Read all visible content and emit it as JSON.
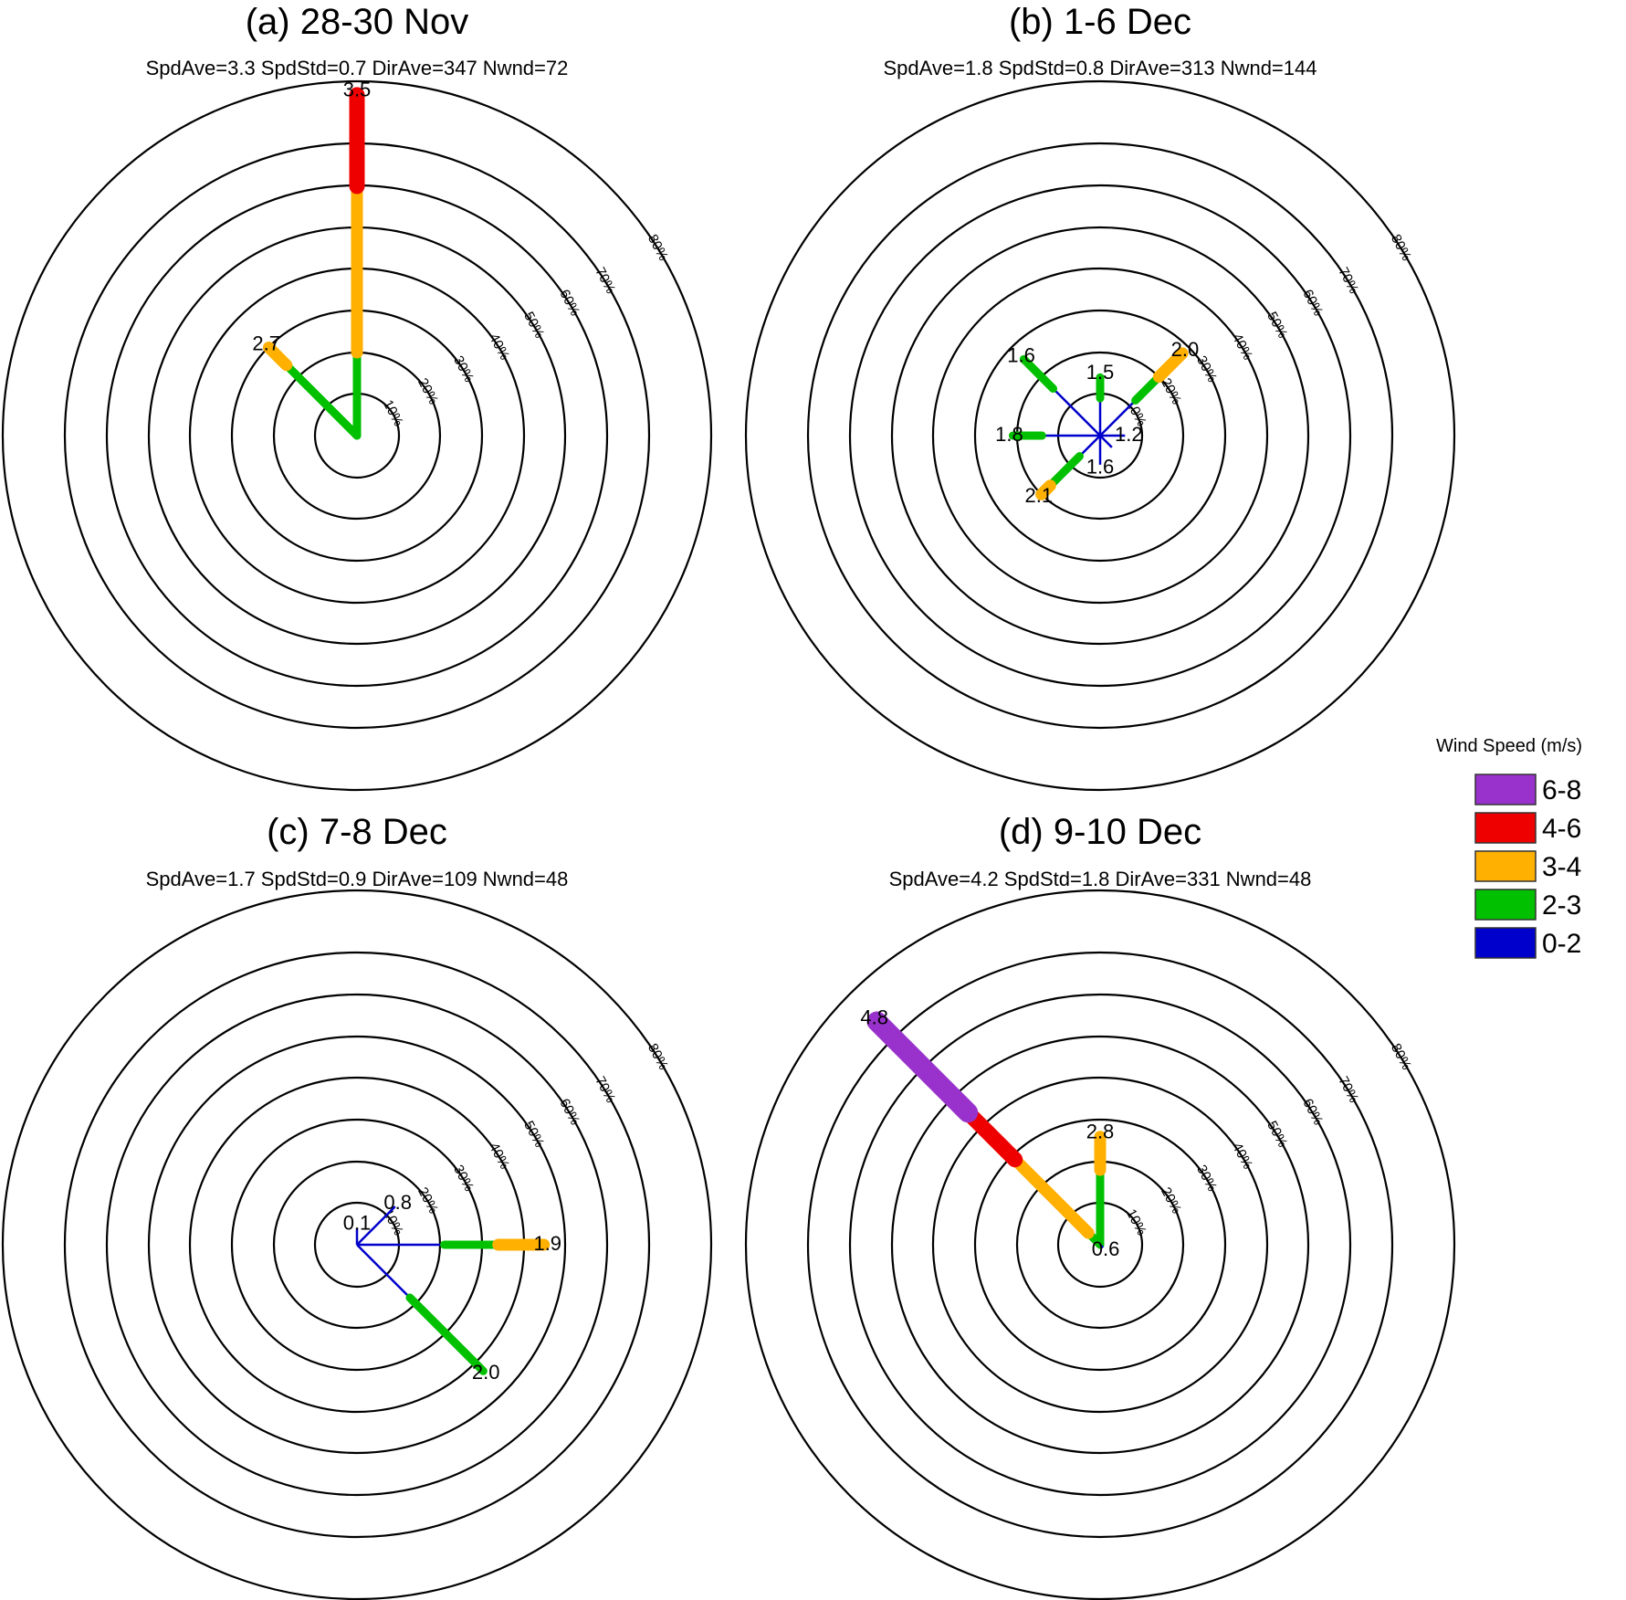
{
  "chart_data": [
    {
      "type": "windrose",
      "title": "(a) 28-30 Nov",
      "stats": "SpdAve=3.3   SpdStd=0.7   DirAve=347    Nwnd=72",
      "ring_labels": [
        "10%",
        "20%",
        "30%",
        "40%",
        "50%",
        "60%",
        "70%",
        "80%"
      ],
      "petals": [
        {
          "direction": 0,
          "label": "3.5",
          "segments": [
            {
              "bin": "2-3",
              "frequency_pct": 10
            },
            {
              "bin": "3-4",
              "frequency_pct": 20
            },
            {
              "bin": "4-6",
              "frequency_pct": 11
            }
          ]
        },
        {
          "direction": 315,
          "label": "2.7",
          "segments": [
            {
              "bin": "2-3",
              "frequency_pct": 12
            },
            {
              "bin": "3-4",
              "frequency_pct": 3
            }
          ]
        }
      ]
    },
    {
      "type": "windrose",
      "title": "(b) 1-6 Dec",
      "stats": "SpdAve=1.8   SpdStd=0.8   DirAve=313    Nwnd=144",
      "ring_labels": [
        "10%",
        "20%",
        "30%",
        "40%",
        "50%",
        "60%",
        "70%",
        "80%"
      ],
      "petals": [
        {
          "direction": 0,
          "label": "1.5",
          "segments": [
            {
              "bin": "0-2",
              "frequency_pct": 4.5
            },
            {
              "bin": "2-3",
              "frequency_pct": 2.5
            }
          ]
        },
        {
          "direction": 45,
          "label": "2.0",
          "segments": [
            {
              "bin": "0-2",
              "frequency_pct": 6
            },
            {
              "bin": "2-3",
              "frequency_pct": 4
            },
            {
              "bin": "3-4",
              "frequency_pct": 4
            }
          ]
        },
        {
          "direction": 90,
          "label": "1.2",
          "segments": [
            {
              "bin": "0-2",
              "frequency_pct": 3
            }
          ]
        },
        {
          "direction": 135,
          "label": "",
          "segments": [
            {
              "bin": "0-2",
              "frequency_pct": 2
            }
          ]
        },
        {
          "direction": 180,
          "label": "1.6",
          "segments": [
            {
              "bin": "0-2",
              "frequency_pct": 3.5
            }
          ]
        },
        {
          "direction": 225,
          "label": "2.1",
          "segments": [
            {
              "bin": "0-2",
              "frequency_pct": 3.5
            },
            {
              "bin": "2-3",
              "frequency_pct": 5
            },
            {
              "bin": "3-4",
              "frequency_pct": 1.5
            }
          ]
        },
        {
          "direction": 270,
          "label": "1.8",
          "segments": [
            {
              "bin": "0-2",
              "frequency_pct": 7
            },
            {
              "bin": "2-3",
              "frequency_pct": 3.5
            }
          ]
        },
        {
          "direction": 315,
          "label": "1.6",
          "segments": [
            {
              "bin": "0-2",
              "frequency_pct": 8
            },
            {
              "bin": "2-3",
              "frequency_pct": 5
            }
          ]
        }
      ]
    },
    {
      "type": "windrose",
      "title": "(c) 7-8 Dec",
      "stats": "SpdAve=1.7   SpdStd=0.9   DirAve=109    Nwnd=48",
      "ring_labels": [
        "10%",
        "20%",
        "30%",
        "40%",
        "50%",
        "60%",
        "70%",
        "80%"
      ],
      "petals": [
        {
          "direction": 0,
          "label": "0.1",
          "segments": [
            {
              "bin": "0-2",
              "frequency_pct": 2
            }
          ]
        },
        {
          "direction": 45,
          "label": "0.8",
          "segments": [
            {
              "bin": "0-2",
              "frequency_pct": 6.5
            }
          ]
        },
        {
          "direction": 90,
          "label": "1.9",
          "segments": [
            {
              "bin": "0-2",
              "frequency_pct": 10.5
            },
            {
              "bin": "2-3",
              "frequency_pct": 6.5
            },
            {
              "bin": "3-4",
              "frequency_pct": 5.5
            }
          ]
        },
        {
          "direction": 135,
          "label": "2.0",
          "segments": [
            {
              "bin": "0-2",
              "frequency_pct": 9
            },
            {
              "bin": "2-3",
              "frequency_pct": 12.5
            }
          ]
        }
      ]
    },
    {
      "type": "windrose",
      "title": "(d) 9-10 Dec",
      "stats": "SpdAve=4.2   SpdStd=1.8   DirAve=331    Nwnd=48",
      "ring_labels": [
        "10%",
        "20%",
        "30%",
        "40%",
        "50%",
        "60%",
        "70%",
        "80%"
      ],
      "petals": [
        {
          "direction": 0,
          "label": "2.8",
          "segments": [
            {
              "bin": "2-3",
              "frequency_pct": 9
            },
            {
              "bin": "3-4",
              "frequency_pct": 4
            }
          ]
        },
        {
          "direction": 315,
          "label": "4.8",
          "segments": [
            {
              "bin": "2-3",
              "frequency_pct": 2
            },
            {
              "bin": "3-4",
              "frequency_pct": 12.5
            },
            {
              "bin": "4-6",
              "frequency_pct": 8
            },
            {
              "bin": "6-8",
              "frequency_pct": 15.5
            }
          ]
        },
        {
          "direction": 135,
          "label": "0.6",
          "segments": [
            {
              "bin": "0-2",
              "frequency_pct": 0.5
            }
          ]
        }
      ]
    }
  ],
  "legend": {
    "title": "Wind Speed (m/s)",
    "position": "right",
    "items": [
      {
        "label": "6-8",
        "color": "#9932CC"
      },
      {
        "label": "4-6",
        "color": "#EE0000"
      },
      {
        "label": "3-4",
        "color": "#FFB000"
      },
      {
        "label": "2-3",
        "color": "#00C000"
      },
      {
        "label": "0-2",
        "color": "#0000CC"
      }
    ]
  }
}
